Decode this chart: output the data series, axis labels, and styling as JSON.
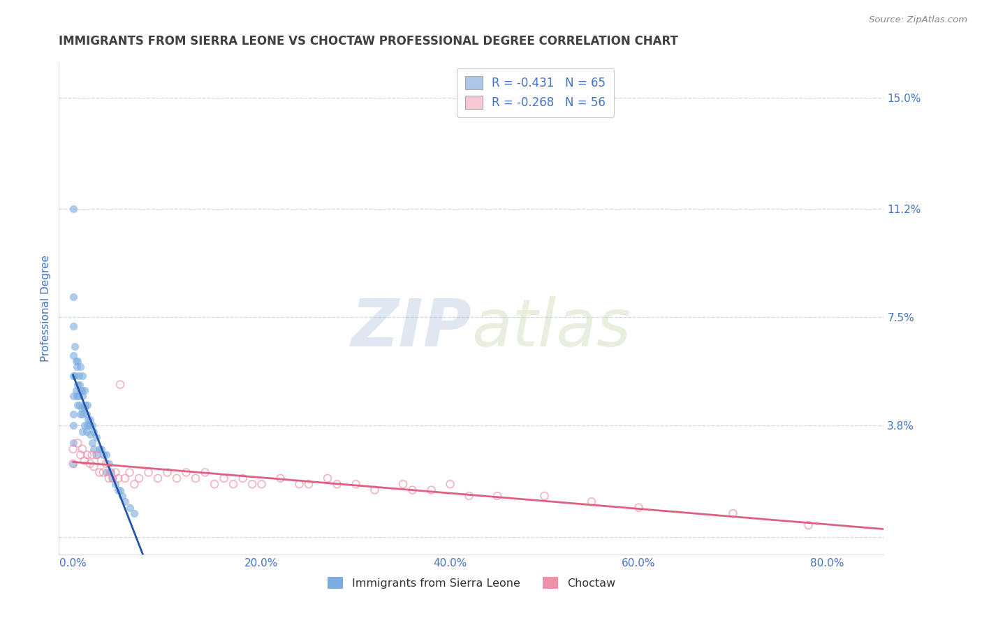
{
  "title": "IMMIGRANTS FROM SIERRA LEONE VS CHOCTAW PROFESSIONAL DEGREE CORRELATION CHART",
  "source_text": "Source: ZipAtlas.com",
  "ylabel": "Professional Degree",
  "watermark_zip": "ZIP",
  "watermark_atlas": "atlas",
  "legend_series": [
    {
      "label": "Immigrants from Sierra Leone",
      "R": -0.431,
      "N": 65,
      "patch_color": "#aec6e8",
      "dot_color": "#7aace0",
      "line_color": "#2255aa"
    },
    {
      "label": "Choctaw",
      "R": -0.268,
      "N": 56,
      "patch_color": "#f8c8d4",
      "dot_color": "#f090a8",
      "line_color": "#e06080"
    }
  ],
  "ytick_labels": [
    "",
    "3.8%",
    "7.5%",
    "11.2%",
    "15.0%"
  ],
  "ytick_values": [
    0.0,
    0.038,
    0.075,
    0.112,
    0.15
  ],
  "xtick_labels": [
    "0.0%",
    "20.0%",
    "40.0%",
    "60.0%",
    "80.0%"
  ],
  "xtick_values": [
    0.0,
    0.2,
    0.4,
    0.6,
    0.8
  ],
  "xlim": [
    -0.015,
    0.86
  ],
  "ylim": [
    -0.006,
    0.162
  ],
  "background_color": "#ffffff",
  "grid_color": "#c8d8ec",
  "title_color": "#404040",
  "tick_label_color": "#4472c4",
  "sierra_leone_x": [
    0.0,
    0.0,
    0.0,
    0.0,
    0.0,
    0.0,
    0.0,
    0.0,
    0.0,
    0.0,
    0.002,
    0.002,
    0.003,
    0.003,
    0.004,
    0.004,
    0.005,
    0.005,
    0.005,
    0.006,
    0.006,
    0.007,
    0.007,
    0.008,
    0.008,
    0.008,
    0.009,
    0.009,
    0.01,
    0.01,
    0.01,
    0.01,
    0.012,
    0.012,
    0.012,
    0.013,
    0.014,
    0.014,
    0.015,
    0.015,
    0.016,
    0.017,
    0.018,
    0.018,
    0.02,
    0.02,
    0.022,
    0.022,
    0.025,
    0.025,
    0.028,
    0.03,
    0.032,
    0.035,
    0.035,
    0.038,
    0.04,
    0.042,
    0.045,
    0.048,
    0.05,
    0.052,
    0.055,
    0.06,
    0.065
  ],
  "sierra_leone_y": [
    0.112,
    0.082,
    0.072,
    0.062,
    0.055,
    0.048,
    0.042,
    0.038,
    0.032,
    0.025,
    0.065,
    0.055,
    0.06,
    0.05,
    0.058,
    0.048,
    0.06,
    0.052,
    0.045,
    0.055,
    0.048,
    0.052,
    0.045,
    0.058,
    0.05,
    0.042,
    0.05,
    0.044,
    0.055,
    0.048,
    0.042,
    0.036,
    0.05,
    0.044,
    0.038,
    0.045,
    0.042,
    0.036,
    0.045,
    0.038,
    0.04,
    0.038,
    0.04,
    0.035,
    0.038,
    0.032,
    0.036,
    0.03,
    0.034,
    0.028,
    0.03,
    0.03,
    0.028,
    0.028,
    0.022,
    0.025,
    0.022,
    0.02,
    0.018,
    0.016,
    0.016,
    0.014,
    0.012,
    0.01,
    0.008
  ],
  "choctaw_x": [
    0.0,
    0.0,
    0.005,
    0.008,
    0.01,
    0.012,
    0.015,
    0.018,
    0.02,
    0.022,
    0.025,
    0.028,
    0.03,
    0.032,
    0.035,
    0.038,
    0.04,
    0.042,
    0.045,
    0.048,
    0.05,
    0.055,
    0.06,
    0.065,
    0.07,
    0.08,
    0.09,
    0.1,
    0.11,
    0.12,
    0.13,
    0.14,
    0.15,
    0.16,
    0.17,
    0.18,
    0.19,
    0.2,
    0.22,
    0.24,
    0.25,
    0.27,
    0.28,
    0.3,
    0.32,
    0.35,
    0.36,
    0.38,
    0.4,
    0.42,
    0.45,
    0.5,
    0.55,
    0.6,
    0.7,
    0.78
  ],
  "choctaw_y": [
    0.03,
    0.025,
    0.032,
    0.028,
    0.03,
    0.026,
    0.028,
    0.025,
    0.028,
    0.024,
    0.028,
    0.022,
    0.026,
    0.022,
    0.025,
    0.02,
    0.022,
    0.02,
    0.022,
    0.02,
    0.052,
    0.02,
    0.022,
    0.018,
    0.02,
    0.022,
    0.02,
    0.022,
    0.02,
    0.022,
    0.02,
    0.022,
    0.018,
    0.02,
    0.018,
    0.02,
    0.018,
    0.018,
    0.02,
    0.018,
    0.018,
    0.02,
    0.018,
    0.018,
    0.016,
    0.018,
    0.016,
    0.016,
    0.018,
    0.014,
    0.014,
    0.014,
    0.012,
    0.01,
    0.008,
    0.004
  ]
}
